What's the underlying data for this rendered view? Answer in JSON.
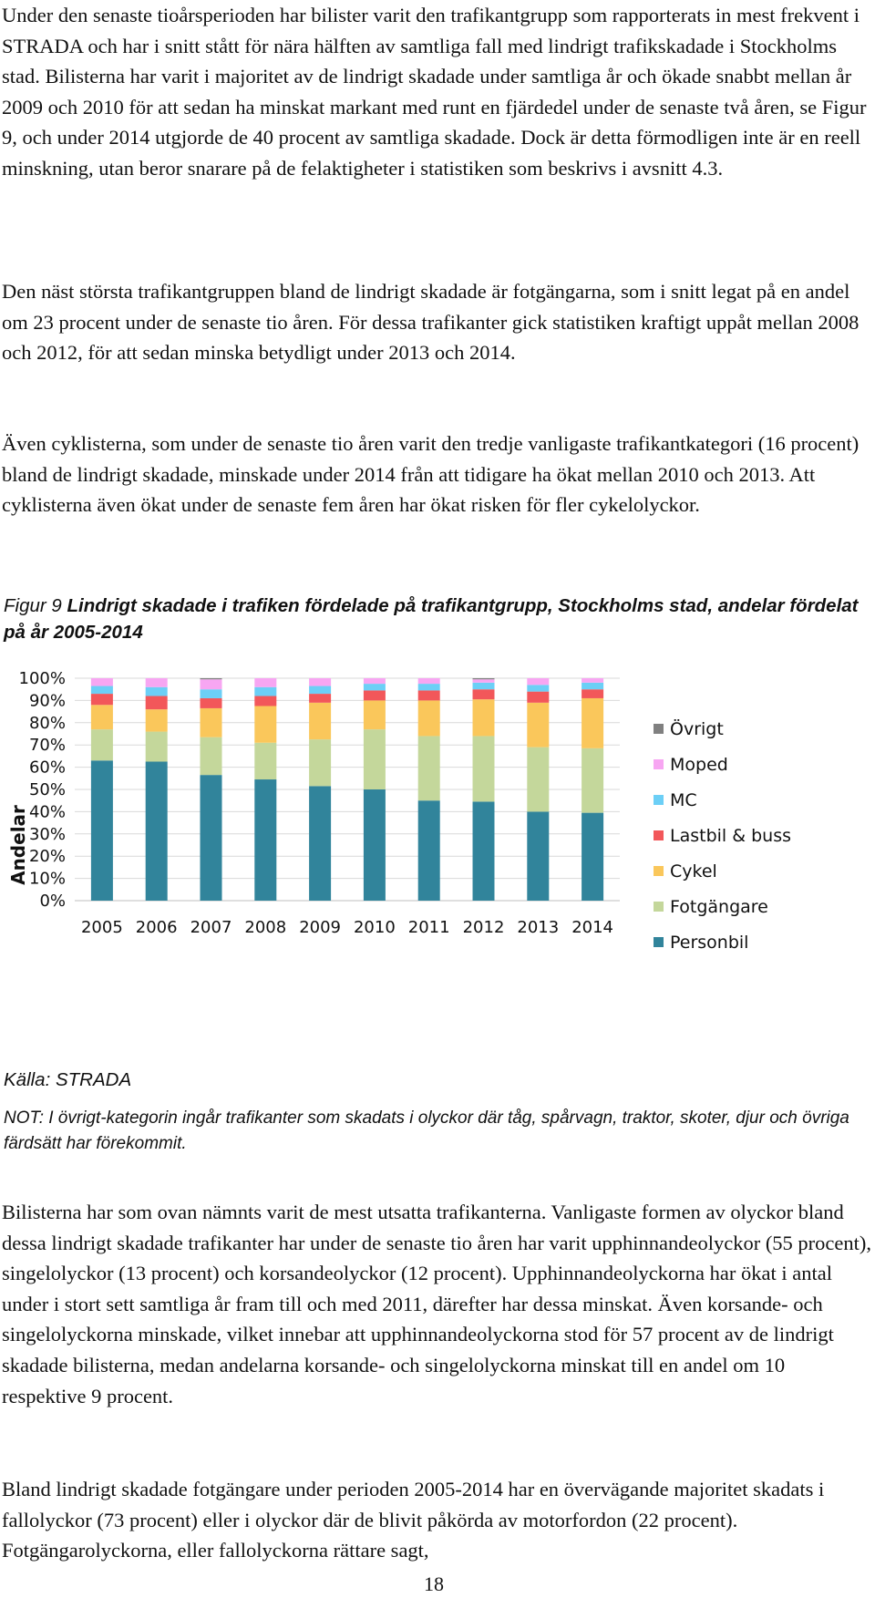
{
  "paragraphs": {
    "p1": "Under den senaste tioårsperioden har bilister varit den trafikantgrupp som rapporterats in mest frekvent i STRADA och har i snitt stått för nära hälften av samtliga fall med lindrigt trafikskadade i Stockholms stad. Bilisterna har varit i majoritet av de lindrigt skadade under samtliga år och ökade snabbt mellan år 2009 och 2010 för att sedan ha minskat markant med runt en fjärdedel under de senaste två åren, se Figur 9, och under 2014 utgjorde de 40 procent av samtliga skadade. Dock är detta förmodligen inte är en reell minskning, utan beror snarare på de felaktigheter i statistiken som beskrivs i avsnitt 4.3.",
    "p2": "Den näst största trafikantgruppen bland de lindrigt skadade är fotgängarna, som i snitt legat på en andel om 23 procent under de senaste tio åren. För dessa trafikanter gick statistiken kraftigt uppåt mellan 2008 och 2012, för att sedan minska betydligt under 2013 och 2014.",
    "p3": "Även cyklisterna, som under de senaste tio åren varit den tredje vanligaste trafikantkategori (16 procent) bland de lindrigt skadade, minskade under 2014 från att tidigare ha ökat mellan 2010 och 2013. Att cyklisterna även ökat under de senaste fem åren har ökat risken för fler cykelolyckor.",
    "p4": "Bilisterna har som ovan nämnts varit de mest utsatta trafikanterna. Vanligaste formen av olyckor bland dessa lindrigt skadade trafikanter har under de senaste tio åren har varit upphinnandeolyckor (55 procent), singelolyckor (13 procent) och korsandeolyckor (12 procent). Upphinnandeolyckorna har ökat i antal under i stort sett samtliga år fram till och med 2011, därefter har dessa minskat. Även korsande- och singelolyckorna minskade, vilket innebar att upphinnandeolyckorna stod för 57 procent av de lindrigt skadade bilisterna, medan andelarna korsande- och singelolyckorna minskat till en andel om 10 respektive 9 procent.",
    "p5": "Bland lindrigt skadade fotgängare under perioden 2005-2014 har en övervägande majoritet skadats i fallolyckor (73 procent) eller i olyckor där de blivit påkörda av motorfordon (22 procent). Fotgängarolyckorna, eller fallolyckorna rättare sagt,"
  },
  "figure": {
    "label": "Figur 9 ",
    "caption": "Lindrigt skadade i trafiken fördelade på trafikantgrupp, Stockholms stad, andelar fördelat på år 2005-2014",
    "source": "Källa: STRADA",
    "note": "NOT: I övrigt-kategorin ingår trafikanter som skadats i olyckor där tåg, spårvagn, traktor, skoter, djur och övriga färdsätt har förekommit."
  },
  "page_number": "18",
  "chart_data": {
    "type": "bar",
    "stacked": true,
    "categories": [
      "2005",
      "2006",
      "2007",
      "2008",
      "2009",
      "2010",
      "2011",
      "2012",
      "2013",
      "2014"
    ],
    "ylabel": "Andelar",
    "xlabel": "",
    "ylim": [
      0,
      100
    ],
    "yticks": [
      "0%",
      "10%",
      "20%",
      "30%",
      "40%",
      "50%",
      "60%",
      "70%",
      "80%",
      "90%",
      "100%"
    ],
    "grid": true,
    "legend_position": "right",
    "series": [
      {
        "name": "Personbil",
        "color": "#31849B",
        "values": [
          63,
          62.5,
          56.5,
          54.5,
          51.5,
          50,
          45,
          44.5,
          40,
          39.5
        ]
      },
      {
        "name": "Fotgängare",
        "color": "#C4D79B",
        "values": [
          14,
          13.5,
          17,
          16.5,
          21,
          27,
          29,
          29.5,
          29,
          29
        ]
      },
      {
        "name": "Cykel",
        "color": "#FAC75B",
        "values": [
          11,
          10,
          13,
          16.5,
          16.5,
          13,
          16,
          16.5,
          20,
          22.5
        ]
      },
      {
        "name": "Lastbil & buss",
        "color": "#F2575A",
        "values": [
          5,
          6,
          4.5,
          4.5,
          4,
          4.5,
          4.5,
          4.5,
          5,
          4
        ]
      },
      {
        "name": "MC",
        "color": "#6CCFF6",
        "values": [
          3.5,
          4,
          4,
          4,
          3.5,
          3,
          3,
          3,
          3,
          3
        ]
      },
      {
        "name": "Moped",
        "color": "#F7A6F2",
        "values": [
          3.5,
          4,
          4.5,
          4,
          3.5,
          2.5,
          2.5,
          1.5,
          3,
          2
        ]
      },
      {
        "name": "Övrigt",
        "color": "#808080",
        "values": [
          0,
          0,
          0.5,
          0,
          0,
          0,
          0,
          0.5,
          0,
          0
        ]
      }
    ]
  }
}
